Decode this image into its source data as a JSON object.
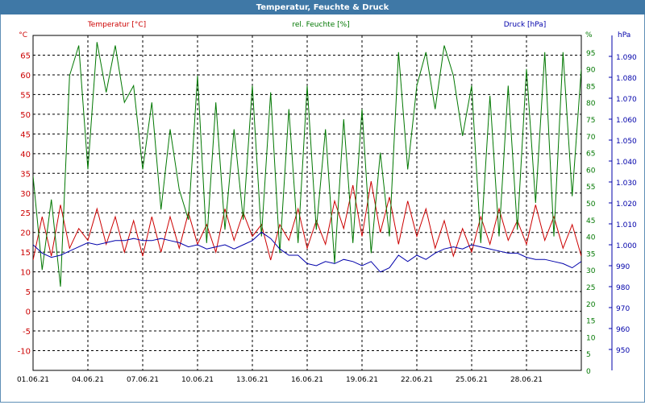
{
  "window": {
    "title": "Temperatur, Feuchte & Druck"
  },
  "colors": {
    "temperature": "#cc0000",
    "humidity": "#007700",
    "pressure": "#0000aa",
    "grid": "#000000",
    "titlebar": "#3f78a6"
  },
  "chart_data": {
    "type": "line",
    "title": "Temperatur, Feuchte & Druck",
    "grid": true,
    "x_tick_labels": [
      "01.06.21",
      "04.06.21",
      "07.06.21",
      "10.06.21",
      "13.06.21",
      "16.06.21",
      "19.06.21",
      "22.06.21",
      "25.06.21",
      "28.06.21"
    ],
    "x_range": [
      "01.06.21",
      "01.07.21"
    ],
    "axes": {
      "temperature": {
        "label": "Temperatur [°C]",
        "unit": "°C",
        "range": [
          -15,
          70
        ],
        "ticks": [
          "-10",
          "-5",
          "0",
          "5",
          "10",
          "15",
          "20",
          "25",
          "30",
          "35",
          "40",
          "45",
          "50",
          "55",
          "60",
          "65"
        ]
      },
      "humidity": {
        "label": "rel. Feuchte [%]",
        "unit": "%",
        "range": [
          0,
          100
        ],
        "ticks": [
          "0",
          "5",
          "10",
          "15",
          "20",
          "25",
          "30",
          "35",
          "40",
          "45",
          "50",
          "55",
          "60",
          "65",
          "70",
          "75",
          "80",
          "85",
          "90",
          "95"
        ]
      },
      "pressure": {
        "label": "Druck [hPa]",
        "unit": "hPa",
        "range": [
          940,
          1100
        ],
        "ticks": [
          "950",
          "960",
          "970",
          "980",
          "990",
          "1.000",
          "1.010",
          "1.020",
          "1.030",
          "1.040",
          "1.050",
          "1.060",
          "1.070",
          "1.080",
          "1.090"
        ]
      }
    },
    "series": [
      {
        "name": "Temperatur [°C]",
        "axis": "temperature",
        "x": [
          0,
          0.5,
          1,
          1.5,
          2,
          2.5,
          3,
          3.5,
          4,
          4.5,
          5,
          5.5,
          6,
          6.5,
          7,
          7.5,
          8,
          8.5,
          9,
          9.5,
          10,
          10.5,
          11,
          11.5,
          12,
          12.5,
          13,
          13.5,
          14,
          14.5,
          15,
          15.5,
          16,
          16.5,
          17,
          17.5,
          18,
          18.5,
          19,
          19.5,
          20,
          20.5,
          21,
          21.5,
          22,
          22.5,
          23,
          23.5,
          24,
          24.5,
          25,
          25.5,
          26,
          26.5,
          27,
          27.5,
          28,
          28.5,
          29,
          29.5,
          30
        ],
        "values": [
          13,
          24,
          14,
          27,
          16,
          21,
          18,
          26,
          17,
          24,
          15,
          23,
          14,
          24,
          15,
          24,
          16,
          25,
          17,
          22,
          15,
          26,
          18,
          25,
          19,
          22,
          13,
          22,
          18,
          26,
          16,
          23,
          17,
          28,
          21,
          32,
          19,
          33,
          20,
          29,
          17,
          28,
          19,
          26,
          16,
          23,
          14,
          21,
          15,
          24,
          17,
          26,
          18,
          23,
          17,
          27,
          18,
          24,
          16,
          22,
          14
        ]
      },
      {
        "name": "rel. Feuchte [%]",
        "axis": "humidity",
        "x": [
          0,
          0.5,
          1,
          1.5,
          2,
          2.5,
          3,
          3.5,
          4,
          4.5,
          5,
          5.5,
          6,
          6.5,
          7,
          7.5,
          8,
          8.5,
          9,
          9.5,
          10,
          10.5,
          11,
          11.5,
          12,
          12.5,
          13,
          13.5,
          14,
          14.5,
          15,
          15.5,
          16,
          16.5,
          17,
          17.5,
          18,
          18.5,
          19,
          19.5,
          20,
          20.5,
          21,
          21.5,
          22,
          22.5,
          23,
          23.5,
          24,
          24.5,
          25,
          25.5,
          26,
          26.5,
          27,
          27.5,
          28,
          28.5,
          29,
          29.5,
          30
        ],
        "values": [
          58,
          30,
          51,
          25,
          88,
          97,
          60,
          98,
          83,
          97,
          80,
          85,
          60,
          80,
          48,
          72,
          54,
          45,
          88,
          38,
          80,
          42,
          72,
          45,
          85,
          40,
          83,
          35,
          78,
          38,
          85,
          42,
          72,
          32,
          75,
          38,
          78,
          35,
          65,
          40,
          95,
          60,
          85,
          95,
          78,
          97,
          88,
          70,
          85,
          38,
          82,
          40,
          85,
          42,
          90,
          50,
          95,
          40,
          95,
          52,
          90
        ]
      },
      {
        "name": "Druck [hPa]",
        "axis": "pressure",
        "x": [
          0,
          0.5,
          1,
          1.5,
          2,
          2.5,
          3,
          3.5,
          4,
          4.5,
          5,
          5.5,
          6,
          6.5,
          7,
          7.5,
          8,
          8.5,
          9,
          9.5,
          10,
          10.5,
          11,
          11.5,
          12,
          12.5,
          13,
          13.5,
          14,
          14.5,
          15,
          15.5,
          16,
          16.5,
          17,
          17.5,
          18,
          18.5,
          19,
          19.5,
          20,
          20.5,
          21,
          21.5,
          22,
          22.5,
          23,
          23.5,
          24,
          24.5,
          25,
          25.5,
          26,
          26.5,
          27,
          27.5,
          28,
          28.5,
          29,
          29.5,
          30
        ],
        "values": [
          1000,
          996,
          994,
          995,
          997,
          999,
          1001,
          1000,
          1001,
          1002,
          1002,
          1003,
          1002,
          1002,
          1003,
          1002,
          1001,
          999,
          1000,
          998,
          999,
          1000,
          998,
          1000,
          1002,
          1006,
          1003,
          998,
          995,
          995,
          991,
          990,
          992,
          991,
          993,
          992,
          990,
          992,
          987,
          989,
          995,
          992,
          995,
          993,
          996,
          998,
          999,
          998,
          1000,
          999,
          998,
          997,
          996,
          996,
          994,
          993,
          993,
          992,
          991,
          989,
          992
        ]
      }
    ]
  }
}
